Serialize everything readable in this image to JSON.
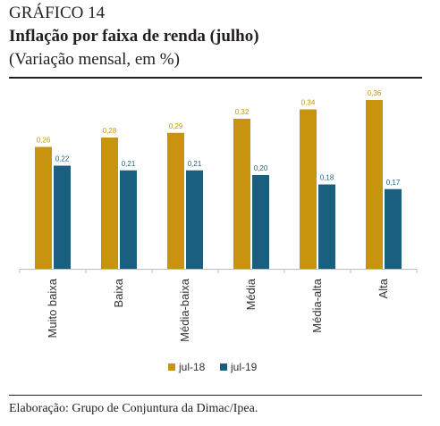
{
  "header": {
    "figure_label": "GRÁFICO 14",
    "title": "Inflação por faixa de renda (julho)",
    "subtitle": "(Variação mensal, em %)"
  },
  "source_note": "Elaboração: Grupo de Conjuntura da Dimac/Ipea.",
  "chart_data": {
    "type": "bar",
    "categories": [
      "Muito baixa",
      "Baixa",
      "Média-baixa",
      "Média",
      "Média-alta",
      "Alta"
    ],
    "series": [
      {
        "name": "jul-18",
        "color": "#c8930e",
        "values": [
          0.26,
          0.28,
          0.29,
          0.32,
          0.34,
          0.36
        ]
      },
      {
        "name": "jul-19",
        "color": "#1b5f80",
        "values": [
          0.22,
          0.21,
          0.21,
          0.2,
          0.18,
          0.17
        ]
      }
    ],
    "data_labels": [
      [
        "0,26",
        "0,28",
        "0,29",
        "0,32",
        "0,34",
        "0,36"
      ],
      [
        "0,22",
        "0,21",
        "0,21",
        "0,20",
        "0,18",
        "0,17"
      ]
    ],
    "ylim": [
      0,
      0.4
    ],
    "grid": false,
    "legend_position": "bottom"
  }
}
